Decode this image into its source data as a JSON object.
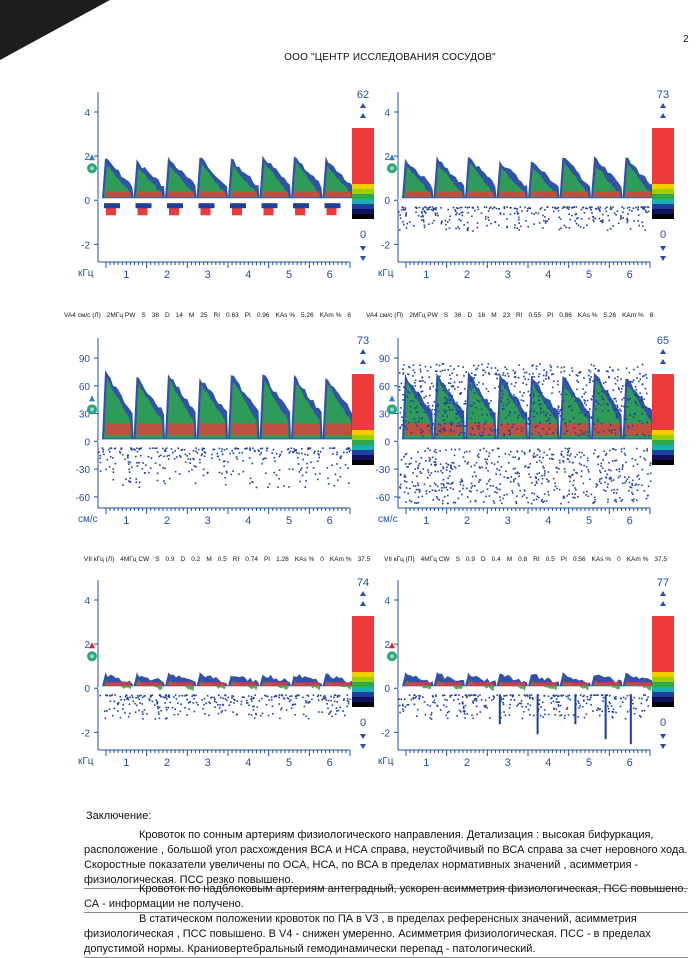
{
  "page": {
    "number": "2",
    "header": "ООО \"ЦЕНТР ИССЛЕДОВАНИЯ СОСУДОВ\""
  },
  "colors": {
    "axis": "#1f4fa8",
    "spectrum_red": "#ee3a3a",
    "spectrum_green": "#2fa84a",
    "spectrum_blue": "#1c3fa0"
  },
  "panels": [
    {
      "id": "p1",
      "unit": "кГц",
      "yticks": [
        "4",
        "2",
        "0",
        "-2"
      ],
      "xticks": [
        "1",
        "2",
        "3",
        "4",
        "5",
        "6"
      ],
      "scale_top": "62",
      "scale_bottom": "0",
      "params": ""
    },
    {
      "id": "p2",
      "unit": "кГц",
      "yticks": [
        "4",
        "2",
        "0",
        "-2"
      ],
      "xticks": [
        "1",
        "2",
        "3",
        "4",
        "5",
        "6"
      ],
      "scale_top": "73",
      "scale_bottom": "0",
      "params": ""
    },
    {
      "id": "p3",
      "unit": "см/с",
      "yticks": [
        "90",
        "60",
        "30",
        "0",
        "-30",
        "-60"
      ],
      "xticks": [
        "1",
        "2",
        "3",
        "4",
        "5",
        "6"
      ],
      "scale_top": "73",
      "scale_bottom": "",
      "params": [
        "VA4 см/с (Л)",
        "2МГц PW",
        "S",
        "38",
        "D",
        "14",
        "M",
        "25",
        "RI",
        "0.63",
        "PI",
        "0.96",
        "KAs %",
        "5.26",
        "KAm %",
        "8"
      ]
    },
    {
      "id": "p4",
      "unit": "см/с",
      "yticks": [
        "90",
        "60",
        "30",
        "0",
        "-30",
        "-60"
      ],
      "xticks": [
        "1",
        "2",
        "3",
        "4",
        "5",
        "6"
      ],
      "scale_top": "65",
      "scale_bottom": "",
      "params": [
        "VA4 см/с (П)",
        "2МГц PW",
        "S",
        "36",
        "D",
        "16",
        "M",
        "23",
        "RI",
        "0.55",
        "PI",
        "0.86",
        "KAs %",
        "5.26",
        "KAm %",
        "8"
      ]
    },
    {
      "id": "p5",
      "unit": "кГц",
      "yticks": [
        "4",
        "2",
        "0",
        "-2"
      ],
      "xticks": [
        "1",
        "2",
        "3",
        "4",
        "5",
        "6"
      ],
      "scale_top": "74",
      "scale_bottom": "0",
      "params": [
        "VII кГц (Л)",
        "4МГц CW",
        "S",
        "0.9",
        "D",
        "0.2",
        "M",
        "0.5",
        "RI",
        "0.74",
        "PI",
        "1.28",
        "KAs %",
        "0",
        "KAm %",
        "37.5"
      ]
    },
    {
      "id": "p6",
      "unit": "кГц",
      "yticks": [
        "4",
        "2",
        "0",
        "-2"
      ],
      "xticks": [
        "1",
        "2",
        "3",
        "4",
        "5",
        "6"
      ],
      "scale_top": "77",
      "scale_bottom": "0",
      "params": [
        "VII кГц (П)",
        "4МГц CW",
        "S",
        "0.9",
        "D",
        "0.4",
        "M",
        "0.8",
        "RI",
        "0.5",
        "PI",
        "0.56",
        "KAs %",
        "0",
        "KAm %",
        "37.5"
      ]
    }
  ],
  "conclusion": {
    "title": "Заключение:",
    "paragraphs": [
      "Кровоток по сонным артериям физиологического направления. Детализация : высокая бифуркация, расположение , большой угол расхождения ВСА и НСА справа, неустойчивый по ВСА справа за счет неровного хода. Скоростные показатели увеличены по ОСА, НСА, по ВСА в пределах нормативных значений , асимметрия - физиологическая. ПСС резко повышено.",
      "Кровоток по надблоковым артериям антеградный, ускорен асимметрия физиологическая, ПСС повышено. СА - информации не получено.",
      "В статическом положении кровоток по ПА в V3 , в пределах референсных значений, асимметрия физиологическая , ПСС повышено. В V4 - снижен умеренно. Асимметрия физиологическая. ПСС - в пределах допустимой нормы. Краниовертебральный гемодинамически перепад - патологический."
    ]
  }
}
